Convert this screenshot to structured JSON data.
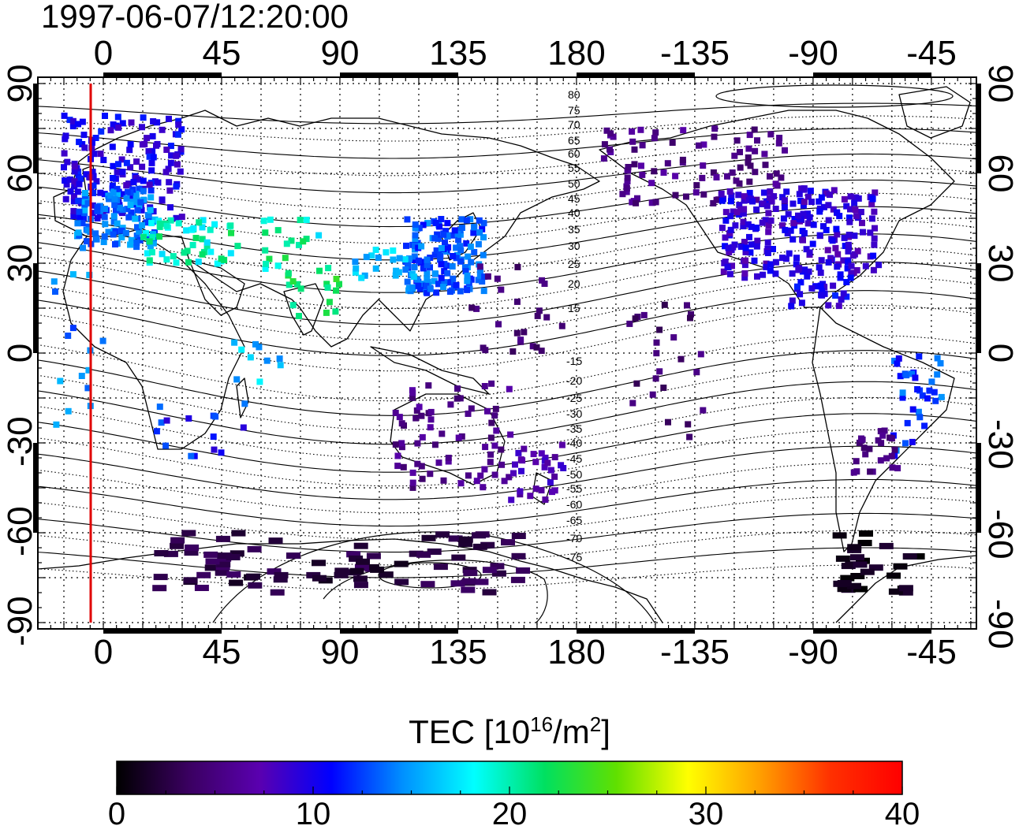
{
  "title": "1997-06-07/12:20:00",
  "map": {
    "top_lon_ticks": [
      "0",
      "45",
      "90",
      "135",
      "180",
      "-135",
      "-90",
      "-45"
    ],
    "bottom_lon_ticks": [
      "0",
      "45",
      "90",
      "135",
      "180",
      "-135",
      "-90",
      "-45"
    ],
    "left_lat_ticks": [
      "90",
      "60",
      "30",
      "0",
      "-30",
      "-60",
      "-90"
    ],
    "right_lat_ticks": [
      "90",
      "60",
      "30",
      "0",
      "-30",
      "-60",
      "-90"
    ],
    "contour_labels_north": [
      "80",
      "75",
      "70",
      "65",
      "60",
      "55",
      "50",
      "45",
      "40",
      "35",
      "30",
      "25",
      "20",
      "15"
    ],
    "contour_labels_south": [
      "-15",
      "-20",
      "-25",
      "-30",
      "-35",
      "-40",
      "-45",
      "-50",
      "-55",
      "-60",
      "-65",
      "-70",
      "-75"
    ],
    "marker_line_color": "#e00000",
    "land_outline_color": "#000000"
  },
  "colorbar": {
    "label_main": "TEC  [10",
    "label_exp1": "16",
    "label_mid": "/m",
    "label_exp2": "2",
    "label_end": "]",
    "min": 0,
    "max": 40,
    "ticks": [
      "0",
      "10",
      "20",
      "30",
      "40"
    ],
    "colormap": [
      "#000000",
      "#3a0060",
      "#5a00b0",
      "#0000ff",
      "#0090ff",
      "#00ffff",
      "#00e060",
      "#60e000",
      "#ffff00",
      "#ffa000",
      "#ff3000",
      "#ff0000"
    ]
  }
}
